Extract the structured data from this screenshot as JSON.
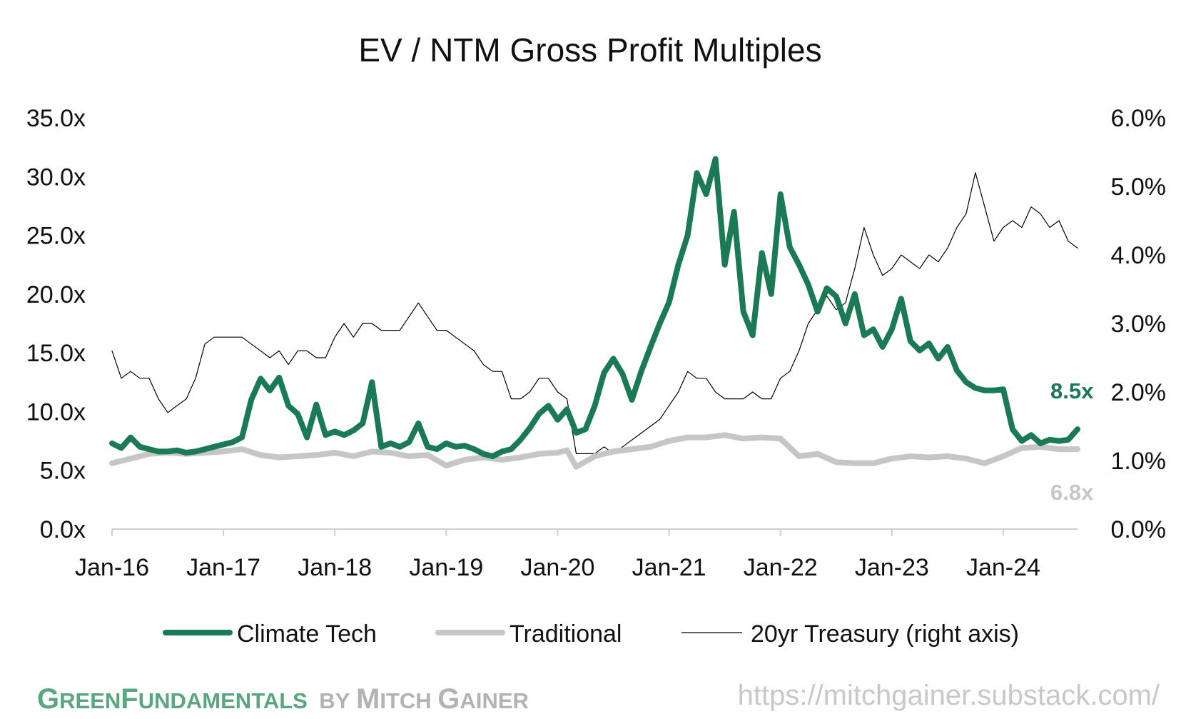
{
  "chart_data": {
    "type": "line",
    "title": "EV / NTM Gross Profit Multiples",
    "xlabel": "",
    "ylabel": "",
    "x_ticks": [
      "Jan-16",
      "Jan-17",
      "Jan-18",
      "Jan-19",
      "Jan-20",
      "Jan-21",
      "Jan-22",
      "Jan-23",
      "Jan-24"
    ],
    "x_range": [
      "2016-01",
      "2024-09"
    ],
    "y_left": {
      "ticks": [
        "0.0x",
        "5.0x",
        "10.0x",
        "15.0x",
        "20.0x",
        "25.0x",
        "30.0x",
        "35.0x"
      ],
      "ylim": [
        0,
        35
      ]
    },
    "y_right": {
      "ticks": [
        "0.0%",
        "1.0%",
        "2.0%",
        "3.0%",
        "4.0%",
        "5.0%",
        "6.0%"
      ],
      "ylim": [
        0,
        6
      ]
    },
    "grid": false,
    "legend_position": "bottom",
    "series": [
      {
        "name": "Climate Tech",
        "axis": "left",
        "color": "#1a7a55",
        "end_label": "8.5x",
        "points": [
          [
            "2016-01",
            7.3
          ],
          [
            "2016-02",
            6.9
          ],
          [
            "2016-03",
            7.8
          ],
          [
            "2016-04",
            7.0
          ],
          [
            "2016-05",
            6.8
          ],
          [
            "2016-06",
            6.6
          ],
          [
            "2016-07",
            6.6
          ],
          [
            "2016-08",
            6.7
          ],
          [
            "2016-09",
            6.5
          ],
          [
            "2016-10",
            6.6
          ],
          [
            "2016-11",
            6.8
          ],
          [
            "2016-12",
            7.0
          ],
          [
            "2017-01",
            7.2
          ],
          [
            "2017-02",
            7.4
          ],
          [
            "2017-03",
            7.8
          ],
          [
            "2017-04",
            11.0
          ],
          [
            "2017-05",
            12.8
          ],
          [
            "2017-06",
            11.8
          ],
          [
            "2017-07",
            12.9
          ],
          [
            "2017-08",
            10.5
          ],
          [
            "2017-09",
            9.8
          ],
          [
            "2017-10",
            7.8
          ],
          [
            "2017-11",
            10.6
          ],
          [
            "2017-12",
            8.0
          ],
          [
            "2018-01",
            8.3
          ],
          [
            "2018-02",
            8.0
          ],
          [
            "2018-03",
            8.4
          ],
          [
            "2018-04",
            9.0
          ],
          [
            "2018-05",
            12.5
          ],
          [
            "2018-06",
            7.0
          ],
          [
            "2018-07",
            7.3
          ],
          [
            "2018-08",
            7.0
          ],
          [
            "2018-09",
            7.4
          ],
          [
            "2018-10",
            9.0
          ],
          [
            "2018-11",
            7.0
          ],
          [
            "2018-12",
            6.8
          ],
          [
            "2019-01",
            7.3
          ],
          [
            "2019-02",
            7.0
          ],
          [
            "2019-03",
            7.1
          ],
          [
            "2019-04",
            6.8
          ],
          [
            "2019-05",
            6.4
          ],
          [
            "2019-06",
            6.2
          ],
          [
            "2019-07",
            6.6
          ],
          [
            "2019-08",
            6.8
          ],
          [
            "2019-09",
            7.6
          ],
          [
            "2019-10",
            8.6
          ],
          [
            "2019-11",
            9.8
          ],
          [
            "2019-12",
            10.5
          ],
          [
            "2020-01",
            9.3
          ],
          [
            "2020-02",
            10.2
          ],
          [
            "2020-03",
            8.2
          ],
          [
            "2020-04",
            8.5
          ],
          [
            "2020-05",
            10.5
          ],
          [
            "2020-06",
            13.3
          ],
          [
            "2020-07",
            14.5
          ],
          [
            "2020-08",
            13.2
          ],
          [
            "2020-09",
            11.0
          ],
          [
            "2020-10",
            13.4
          ],
          [
            "2020-11",
            15.5
          ],
          [
            "2020-12",
            17.5
          ],
          [
            "2021-01",
            19.3
          ],
          [
            "2021-02",
            22.5
          ],
          [
            "2021-03",
            25.0
          ],
          [
            "2021-04",
            30.3
          ],
          [
            "2021-05",
            28.5
          ],
          [
            "2021-06",
            31.5
          ],
          [
            "2021-07",
            22.5
          ],
          [
            "2021-08",
            27.0
          ],
          [
            "2021-09",
            18.5
          ],
          [
            "2021-10",
            16.5
          ],
          [
            "2021-11",
            23.5
          ],
          [
            "2021-12",
            20.0
          ],
          [
            "2022-01",
            28.5
          ],
          [
            "2022-02",
            24.0
          ],
          [
            "2022-03",
            22.5
          ],
          [
            "2022-04",
            20.8
          ],
          [
            "2022-05",
            18.5
          ],
          [
            "2022-06",
            20.5
          ],
          [
            "2022-07",
            19.8
          ],
          [
            "2022-08",
            17.5
          ],
          [
            "2022-09",
            20.0
          ],
          [
            "2022-10",
            16.5
          ],
          [
            "2022-11",
            17.0
          ],
          [
            "2022-12",
            15.5
          ],
          [
            "2023-01",
            17.0
          ],
          [
            "2023-02",
            19.6
          ],
          [
            "2023-03",
            16.0
          ],
          [
            "2023-04",
            15.2
          ],
          [
            "2023-05",
            15.8
          ],
          [
            "2023-06",
            14.5
          ],
          [
            "2023-07",
            15.5
          ],
          [
            "2023-08",
            13.5
          ],
          [
            "2023-09",
            12.5
          ],
          [
            "2023-10",
            12.0
          ],
          [
            "2023-11",
            11.8
          ],
          [
            "2023-12",
            11.8
          ],
          [
            "2024-01",
            11.9
          ],
          [
            "2024-02",
            8.5
          ],
          [
            "2024-03",
            7.5
          ],
          [
            "2024-04",
            8.0
          ],
          [
            "2024-05",
            7.3
          ],
          [
            "2024-06",
            7.6
          ],
          [
            "2024-07",
            7.5
          ],
          [
            "2024-08",
            7.6
          ],
          [
            "2024-09",
            8.5
          ]
        ]
      },
      {
        "name": "Traditional",
        "axis": "left",
        "color": "#c6c6c6",
        "end_label": "6.8x",
        "points": [
          [
            "2016-01",
            5.6
          ],
          [
            "2016-03",
            6.0
          ],
          [
            "2016-05",
            6.4
          ],
          [
            "2016-07",
            6.5
          ],
          [
            "2016-09",
            6.4
          ],
          [
            "2016-11",
            6.5
          ],
          [
            "2017-01",
            6.6
          ],
          [
            "2017-03",
            6.8
          ],
          [
            "2017-05",
            6.3
          ],
          [
            "2017-07",
            6.1
          ],
          [
            "2017-09",
            6.2
          ],
          [
            "2017-11",
            6.3
          ],
          [
            "2018-01",
            6.5
          ],
          [
            "2018-03",
            6.2
          ],
          [
            "2018-05",
            6.6
          ],
          [
            "2018-07",
            6.5
          ],
          [
            "2018-09",
            6.2
          ],
          [
            "2018-11",
            6.3
          ],
          [
            "2019-01",
            5.4
          ],
          [
            "2019-03",
            5.9
          ],
          [
            "2019-05",
            6.1
          ],
          [
            "2019-07",
            5.9
          ],
          [
            "2019-09",
            6.1
          ],
          [
            "2019-11",
            6.4
          ],
          [
            "2020-01",
            6.5
          ],
          [
            "2020-02",
            6.7
          ],
          [
            "2020-03",
            5.3
          ],
          [
            "2020-05",
            6.2
          ],
          [
            "2020-07",
            6.6
          ],
          [
            "2020-09",
            6.8
          ],
          [
            "2020-11",
            7.0
          ],
          [
            "2021-01",
            7.5
          ],
          [
            "2021-03",
            7.8
          ],
          [
            "2021-05",
            7.8
          ],
          [
            "2021-07",
            8.0
          ],
          [
            "2021-09",
            7.7
          ],
          [
            "2021-11",
            7.8
          ],
          [
            "2022-01",
            7.7
          ],
          [
            "2022-03",
            6.2
          ],
          [
            "2022-05",
            6.4
          ],
          [
            "2022-07",
            5.7
          ],
          [
            "2022-09",
            5.6
          ],
          [
            "2022-11",
            5.6
          ],
          [
            "2023-01",
            6.0
          ],
          [
            "2023-03",
            6.2
          ],
          [
            "2023-05",
            6.1
          ],
          [
            "2023-07",
            6.2
          ],
          [
            "2023-09",
            6.0
          ],
          [
            "2023-11",
            5.6
          ],
          [
            "2024-01",
            6.2
          ],
          [
            "2024-03",
            6.9
          ],
          [
            "2024-05",
            7.0
          ],
          [
            "2024-07",
            6.8
          ],
          [
            "2024-09",
            6.8
          ]
        ]
      },
      {
        "name": "20yr Treasury (right axis)",
        "axis": "right",
        "color": "#000000",
        "points": [
          [
            "2016-01",
            2.6
          ],
          [
            "2016-02",
            2.2
          ],
          [
            "2016-03",
            2.3
          ],
          [
            "2016-04",
            2.2
          ],
          [
            "2016-05",
            2.2
          ],
          [
            "2016-06",
            1.9
          ],
          [
            "2016-07",
            1.7
          ],
          [
            "2016-08",
            1.8
          ],
          [
            "2016-09",
            1.9
          ],
          [
            "2016-10",
            2.2
          ],
          [
            "2016-11",
            2.7
          ],
          [
            "2016-12",
            2.8
          ],
          [
            "2017-01",
            2.8
          ],
          [
            "2017-02",
            2.8
          ],
          [
            "2017-03",
            2.8
          ],
          [
            "2017-04",
            2.7
          ],
          [
            "2017-05",
            2.6
          ],
          [
            "2017-06",
            2.5
          ],
          [
            "2017-07",
            2.6
          ],
          [
            "2017-08",
            2.4
          ],
          [
            "2017-09",
            2.6
          ],
          [
            "2017-10",
            2.6
          ],
          [
            "2017-11",
            2.5
          ],
          [
            "2017-12",
            2.5
          ],
          [
            "2018-01",
            2.8
          ],
          [
            "2018-02",
            3.0
          ],
          [
            "2018-03",
            2.8
          ],
          [
            "2018-04",
            3.0
          ],
          [
            "2018-05",
            3.0
          ],
          [
            "2018-06",
            2.9
          ],
          [
            "2018-07",
            2.9
          ],
          [
            "2018-08",
            2.9
          ],
          [
            "2018-09",
            3.1
          ],
          [
            "2018-10",
            3.3
          ],
          [
            "2018-11",
            3.1
          ],
          [
            "2018-12",
            2.9
          ],
          [
            "2019-01",
            2.9
          ],
          [
            "2019-02",
            2.8
          ],
          [
            "2019-03",
            2.7
          ],
          [
            "2019-04",
            2.6
          ],
          [
            "2019-05",
            2.4
          ],
          [
            "2019-06",
            2.3
          ],
          [
            "2019-07",
            2.3
          ],
          [
            "2019-08",
            1.9
          ],
          [
            "2019-09",
            1.9
          ],
          [
            "2019-10",
            2.0
          ],
          [
            "2019-11",
            2.2
          ],
          [
            "2019-12",
            2.2
          ],
          [
            "2020-01",
            2.0
          ],
          [
            "2020-02",
            1.9
          ],
          [
            "2020-03",
            1.1
          ],
          [
            "2020-04",
            1.1
          ],
          [
            "2020-05",
            1.1
          ],
          [
            "2020-06",
            1.2
          ],
          [
            "2020-07",
            1.1
          ],
          [
            "2020-08",
            1.2
          ],
          [
            "2020-09",
            1.3
          ],
          [
            "2020-10",
            1.4
          ],
          [
            "2020-11",
            1.5
          ],
          [
            "2020-12",
            1.6
          ],
          [
            "2021-01",
            1.8
          ],
          [
            "2021-02",
            2.0
          ],
          [
            "2021-03",
            2.3
          ],
          [
            "2021-04",
            2.2
          ],
          [
            "2021-05",
            2.2
          ],
          [
            "2021-06",
            2.0
          ],
          [
            "2021-07",
            1.9
          ],
          [
            "2021-08",
            1.9
          ],
          [
            "2021-09",
            1.9
          ],
          [
            "2021-10",
            2.0
          ],
          [
            "2021-11",
            1.9
          ],
          [
            "2021-12",
            1.9
          ],
          [
            "2022-01",
            2.2
          ],
          [
            "2022-02",
            2.3
          ],
          [
            "2022-03",
            2.6
          ],
          [
            "2022-04",
            3.0
          ],
          [
            "2022-05",
            3.2
          ],
          [
            "2022-06",
            3.4
          ],
          [
            "2022-07",
            3.2
          ],
          [
            "2022-08",
            3.3
          ],
          [
            "2022-09",
            3.8
          ],
          [
            "2022-10",
            4.4
          ],
          [
            "2022-11",
            4.0
          ],
          [
            "2022-12",
            3.7
          ],
          [
            "2023-01",
            3.8
          ],
          [
            "2023-02",
            4.0
          ],
          [
            "2023-03",
            3.9
          ],
          [
            "2023-04",
            3.8
          ],
          [
            "2023-05",
            4.0
          ],
          [
            "2023-06",
            3.9
          ],
          [
            "2023-07",
            4.1
          ],
          [
            "2023-08",
            4.4
          ],
          [
            "2023-09",
            4.6
          ],
          [
            "2023-10",
            5.2
          ],
          [
            "2023-11",
            4.7
          ],
          [
            "2023-12",
            4.2
          ],
          [
            "2024-01",
            4.4
          ],
          [
            "2024-02",
            4.5
          ],
          [
            "2024-03",
            4.4
          ],
          [
            "2024-04",
            4.7
          ],
          [
            "2024-05",
            4.6
          ],
          [
            "2024-06",
            4.4
          ],
          [
            "2024-07",
            4.5
          ],
          [
            "2024-08",
            4.2
          ],
          [
            "2024-09",
            4.1
          ]
        ]
      }
    ]
  },
  "footer": {
    "brand_green": "GreenFundamentals",
    "brand_gray": "by Mitch Gainer",
    "url": "https://mitchgainer.substack.com/"
  }
}
